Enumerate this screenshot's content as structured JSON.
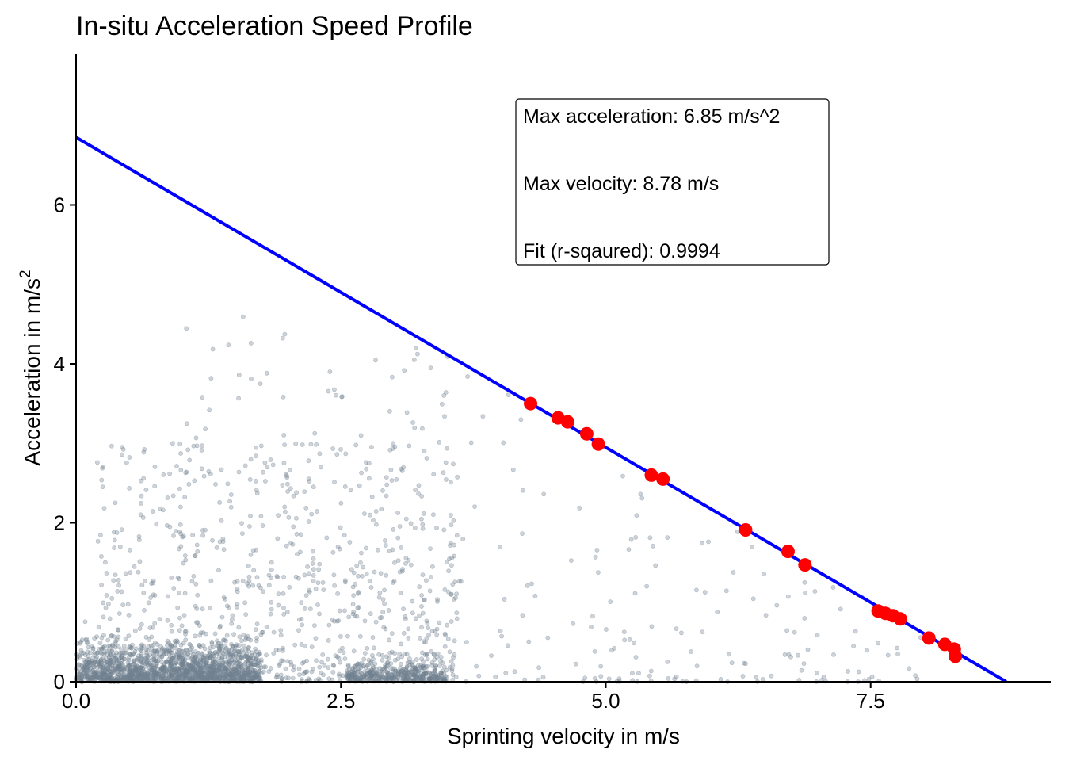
{
  "chart_data": {
    "type": "scatter",
    "title": "In-situ Acceleration Speed Profile",
    "xlabel": "Sprinting velocity in m/s",
    "ylabel": "Acceleration in m/s",
    "ylabel_superscript": "2",
    "xlim": [
      0,
      9.2
    ],
    "ylim": [
      0,
      7.9
    ],
    "xticks": [
      0.0,
      2.5,
      5.0,
      7.5
    ],
    "xtick_labels": [
      "0.0",
      "2.5",
      "5.0",
      "7.5"
    ],
    "yticks": [
      0,
      2,
      4,
      6
    ],
    "ytick_labels": [
      "0",
      "2",
      "4",
      "6"
    ],
    "grid": false,
    "legend": "none",
    "fit_line": {
      "name": "",
      "color": "#0000ff",
      "intercept": 6.85,
      "x_intercept": 8.78,
      "points": [
        [
          0,
          6.85
        ],
        [
          8.78,
          0
        ]
      ]
    },
    "max_points": {
      "color": "#ff0000",
      "points": [
        [
          4.29,
          3.5
        ],
        [
          4.55,
          3.32
        ],
        [
          4.64,
          3.27
        ],
        [
          4.82,
          3.12
        ],
        [
          4.93,
          2.99
        ],
        [
          5.43,
          2.6
        ],
        [
          5.54,
          2.55
        ],
        [
          6.32,
          1.91
        ],
        [
          6.72,
          1.64
        ],
        [
          6.88,
          1.47
        ],
        [
          7.57,
          0.89
        ],
        [
          7.64,
          0.86
        ],
        [
          7.71,
          0.83
        ],
        [
          7.78,
          0.79
        ],
        [
          8.05,
          0.55
        ],
        [
          8.2,
          0.47
        ],
        [
          8.29,
          0.41
        ],
        [
          8.3,
          0.32
        ]
      ]
    },
    "raw_points": {
      "color": "#708090",
      "approx_count": 3000
    },
    "annotations": {
      "max_acceleration": "Max acceleration: 6.85 m/s^2",
      "max_velocity": "Max velocity: 8.78 m/s",
      "fit": "Fit (r-sqaured): 0.9994"
    }
  }
}
